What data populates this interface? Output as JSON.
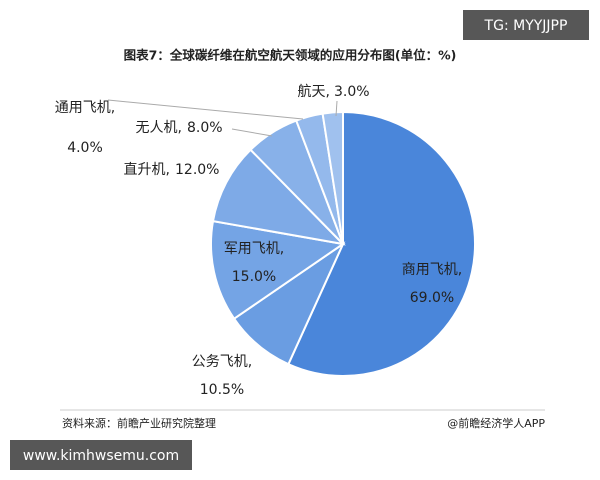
{
  "chart_data": {
    "type": "pie",
    "title": "图表7：全球碳纤维在航空航天领域的应用分布图(单位：%)",
    "categories": [
      "商用飞机,",
      "公务飞机,",
      "军用飞机,",
      "直升机,",
      "无人机,",
      "通用飞机,",
      "航天,"
    ],
    "values": [
      69.0,
      10.5,
      15.0,
      12.0,
      8.0,
      4.0,
      3.0
    ],
    "value_labels": [
      "69.0%",
      "10.5%",
      "15.0%",
      "12.0%",
      "8.0%",
      "4.0%",
      "3.0%"
    ],
    "colors": [
      "#4a86da",
      "#6a9de2",
      "#74a4e5",
      "#7eaae7",
      "#88b1e9",
      "#94b9ec",
      "#a0c1ee"
    ],
    "source": "资料来源：前瞻产业研究院整理",
    "credit": "@前瞻经济学人APP"
  },
  "watermark_top": "TG: MYYJJPP",
  "watermark_bottom": "www.kimhwsemu.com"
}
